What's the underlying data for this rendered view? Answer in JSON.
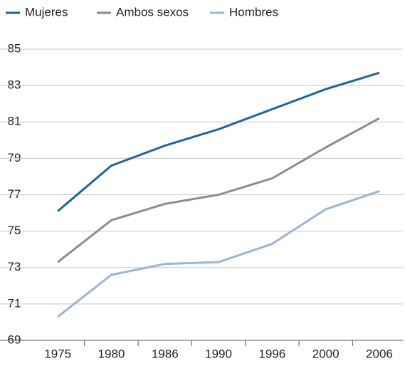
{
  "chart_data": {
    "type": "line",
    "categories": [
      "1975",
      "1980",
      "1986",
      "1990",
      "1996",
      "2000",
      "2006"
    ],
    "series": [
      {
        "name": "Mujeres",
        "color": "#1a63a8",
        "values": [
          76.1,
          78.6,
          79.7,
          80.6,
          81.7,
          82.8,
          83.7
        ]
      },
      {
        "name": "Ambos sexos",
        "color": "#8c8c8c",
        "values": [
          73.3,
          75.6,
          76.5,
          77.0,
          77.9,
          79.6,
          81.2
        ]
      },
      {
        "name": "Hombres",
        "color": "#9db3dc",
        "values": [
          70.3,
          72.6,
          73.2,
          73.3,
          74.3,
          76.2,
          77.2
        ]
      }
    ],
    "ylim": [
      69,
      85
    ],
    "yticks": [
      69,
      71,
      73,
      75,
      77,
      79,
      81,
      83,
      85
    ],
    "grid": true
  }
}
